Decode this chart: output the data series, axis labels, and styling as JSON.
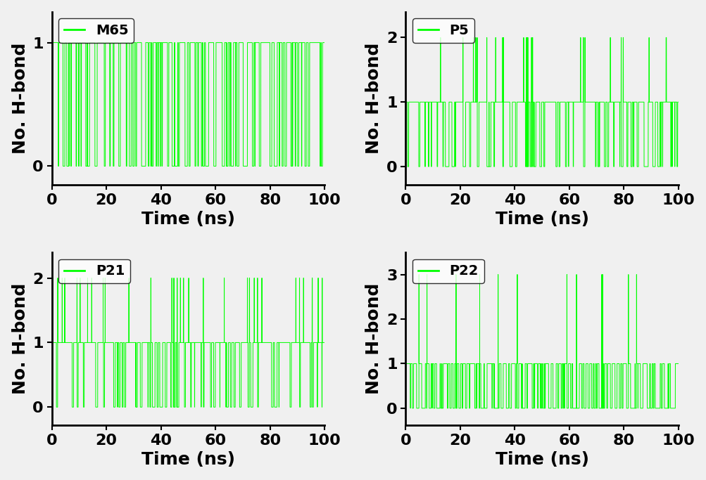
{
  "subplots": [
    {
      "label": "M65",
      "ylim": [
        -0.15,
        1.25
      ],
      "yticks": [
        0,
        1
      ],
      "max_val": 1,
      "color": "#00FF00",
      "seed": 42,
      "zero_prob": 0.38,
      "spike_prob": 0.0,
      "one_prob": 0.62
    },
    {
      "label": "P5",
      "ylim": [
        -0.28,
        2.4
      ],
      "yticks": [
        0,
        1,
        2
      ],
      "max_val": 2,
      "color": "#00FF00",
      "seed": 123,
      "zero_prob": 0.3,
      "spike_prob": 0.06,
      "one_prob": 0.64
    },
    {
      "label": "P21",
      "ylim": [
        -0.28,
        2.4
      ],
      "yticks": [
        0,
        1,
        2
      ],
      "max_val": 2,
      "color": "#00FF00",
      "seed": 7,
      "zero_prob": 0.22,
      "spike_prob": 0.1,
      "one_prob": 0.68
    },
    {
      "label": "P22",
      "ylim": [
        -0.38,
        3.5
      ],
      "yticks": [
        0,
        1,
        2,
        3
      ],
      "max_val": 3,
      "color": "#00FF00",
      "seed": 99,
      "zero_prob": 0.55,
      "spike_prob": 0.04,
      "one_prob": 0.41
    }
  ],
  "n_points": 10001,
  "time_start": 0,
  "time_end": 100,
  "xlabel": "Time (ns)",
  "ylabel": "No. H-bond",
  "line_width": 0.7,
  "tick_fontsize": 16,
  "label_fontsize": 18,
  "legend_fontsize": 14,
  "xticks": [
    0,
    20,
    40,
    60,
    80,
    100
  ],
  "bg_color": "#f0f0f0"
}
